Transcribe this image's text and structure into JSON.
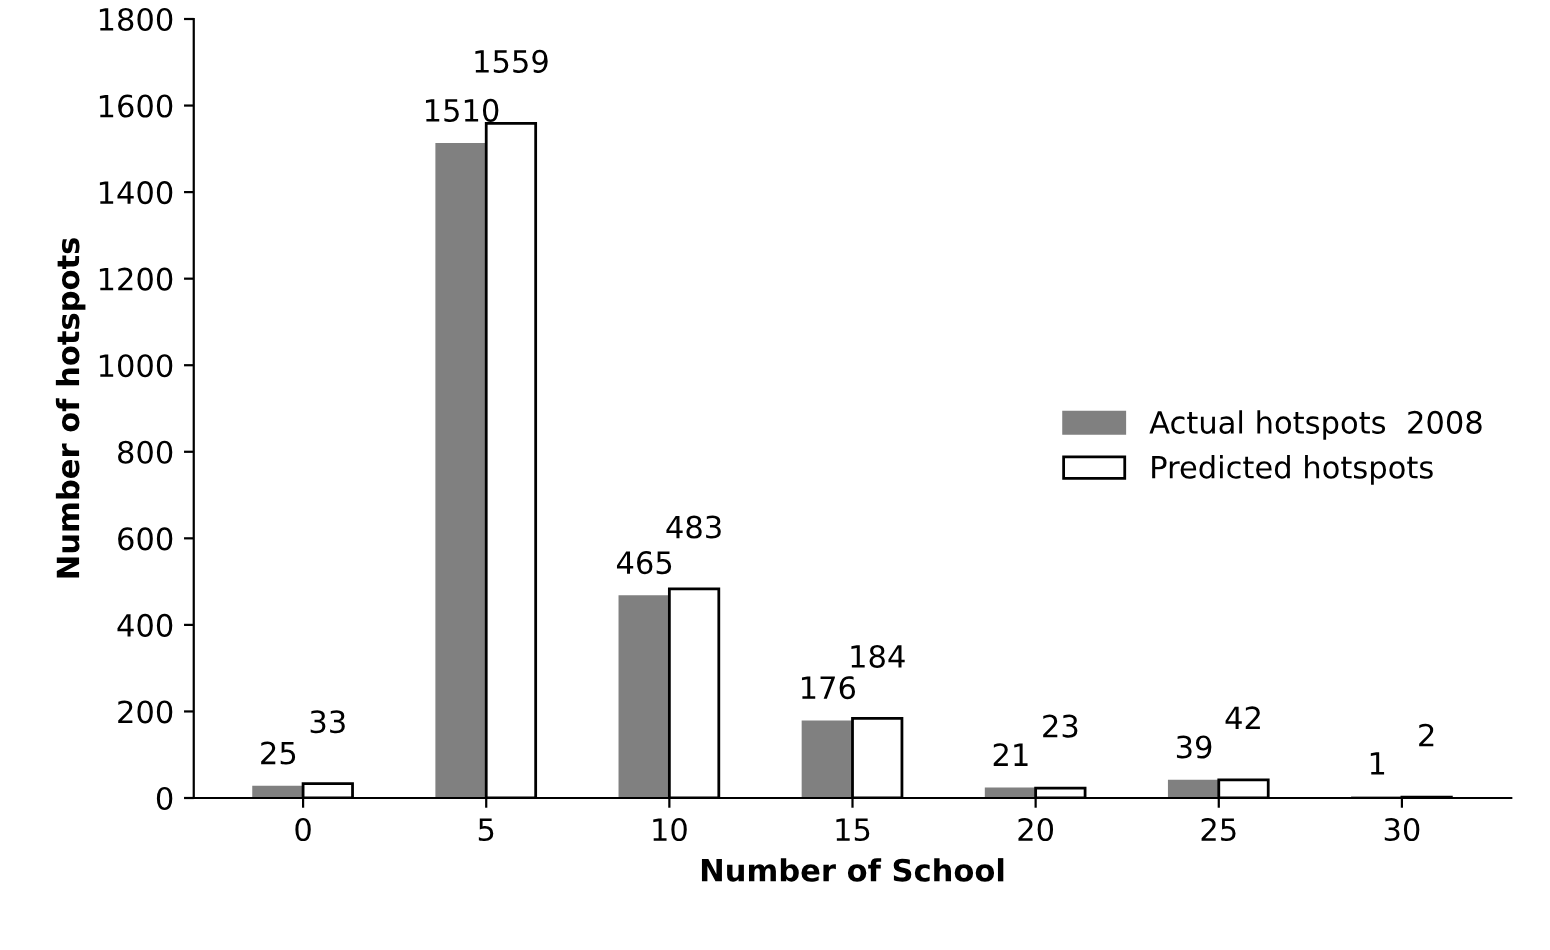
{
  "chart_data": {
    "type": "bar",
    "xlabel": "Number of School",
    "ylabel": "Number of hotspots",
    "categories": [
      "0",
      "5",
      "10",
      "15",
      "20",
      "25",
      "30"
    ],
    "series": [
      {
        "name": "Actual hotspots  2008",
        "color": "#808080",
        "values": [
          25,
          1510,
          465,
          176,
          21,
          39,
          1
        ]
      },
      {
        "name": "Predicted hotspots",
        "color": "#ffffff",
        "values": [
          33,
          1559,
          483,
          184,
          23,
          42,
          2
        ]
      }
    ],
    "ylim": [
      0,
      1800
    ],
    "yticks": [
      0,
      200,
      400,
      600,
      800,
      1000,
      1200,
      1400,
      1600,
      1800
    ],
    "data_labels": true,
    "legend": "right",
    "grid": false
  }
}
